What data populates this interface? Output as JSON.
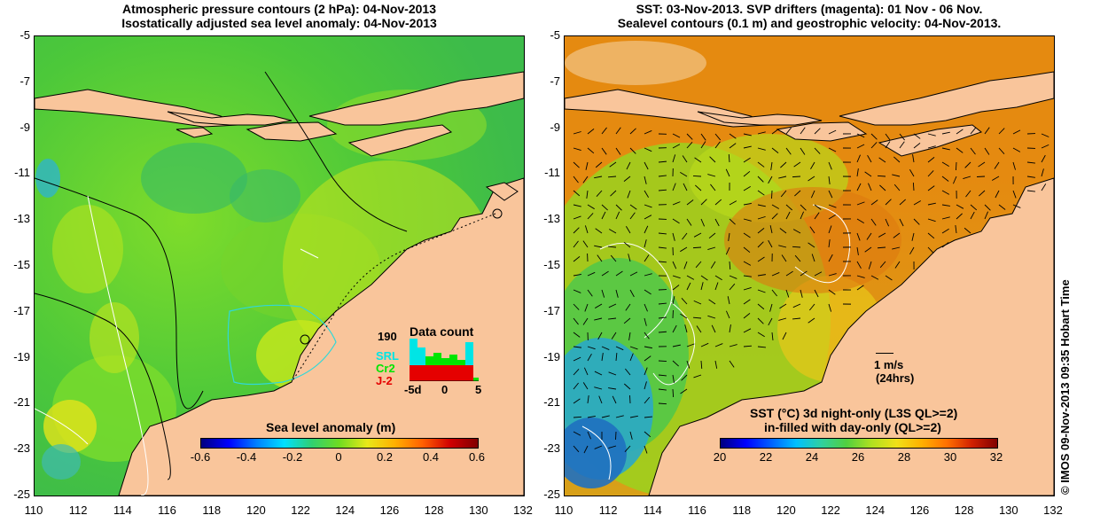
{
  "left": {
    "title1": "Atmospheric pressure contours (2 hPa): 04-Nov-2013",
    "title2": "Isostatically adjusted sea level anomaly: 04-Nov-2013",
    "colorbar_label": "Sea level anomaly (m)",
    "colorbar_ticks": [
      "-0.6",
      "-0.4",
      "-0.2",
      "0",
      "0.2",
      "0.4",
      "0.6"
    ],
    "inset": {
      "title": "Data count",
      "count_label": "190",
      "series": [
        {
          "name": "SRL",
          "color": "#00e5e5"
        },
        {
          "name": "Cr2",
          "color": "#00e500"
        },
        {
          "name": "J-2",
          "color": "#e50000"
        }
      ],
      "xticks": [
        "-5d",
        "0",
        "5"
      ]
    }
  },
  "right": {
    "title1": "SST: 03-Nov-2013. SVP drifters (magenta): 01 Nov - 06 Nov.",
    "title2": "Sealevel contours (0.1 m) and geostrophic velocity: 04-Nov-2013.",
    "scale_label1": "1 m/s",
    "scale_label2": "(24hrs)",
    "colorbar_label1": "SST (°C)  3d night-only (L3S QL>=2)",
    "colorbar_label2": "in-filled with day-only (QL>=2)",
    "colorbar_ticks": [
      "20",
      "22",
      "24",
      "26",
      "28",
      "30",
      "32"
    ]
  },
  "lat_ticks": [
    "-5",
    "-7",
    "-9",
    "-11",
    "-13",
    "-15",
    "-17",
    "-19",
    "-21",
    "-23",
    "-25"
  ],
  "lon_ticks": [
    "110",
    "112",
    "114",
    "116",
    "118",
    "120",
    "122",
    "124",
    "126",
    "128",
    "130",
    "132"
  ],
  "credit": "© IMOS 09-Nov-2013 09:35 Hobart Time",
  "colors": {
    "land": "#f9c59b",
    "ocean_mid": "#5fd22e",
    "sst_warm": "#e98a10",
    "sst_cool": "#2a9ad8"
  }
}
